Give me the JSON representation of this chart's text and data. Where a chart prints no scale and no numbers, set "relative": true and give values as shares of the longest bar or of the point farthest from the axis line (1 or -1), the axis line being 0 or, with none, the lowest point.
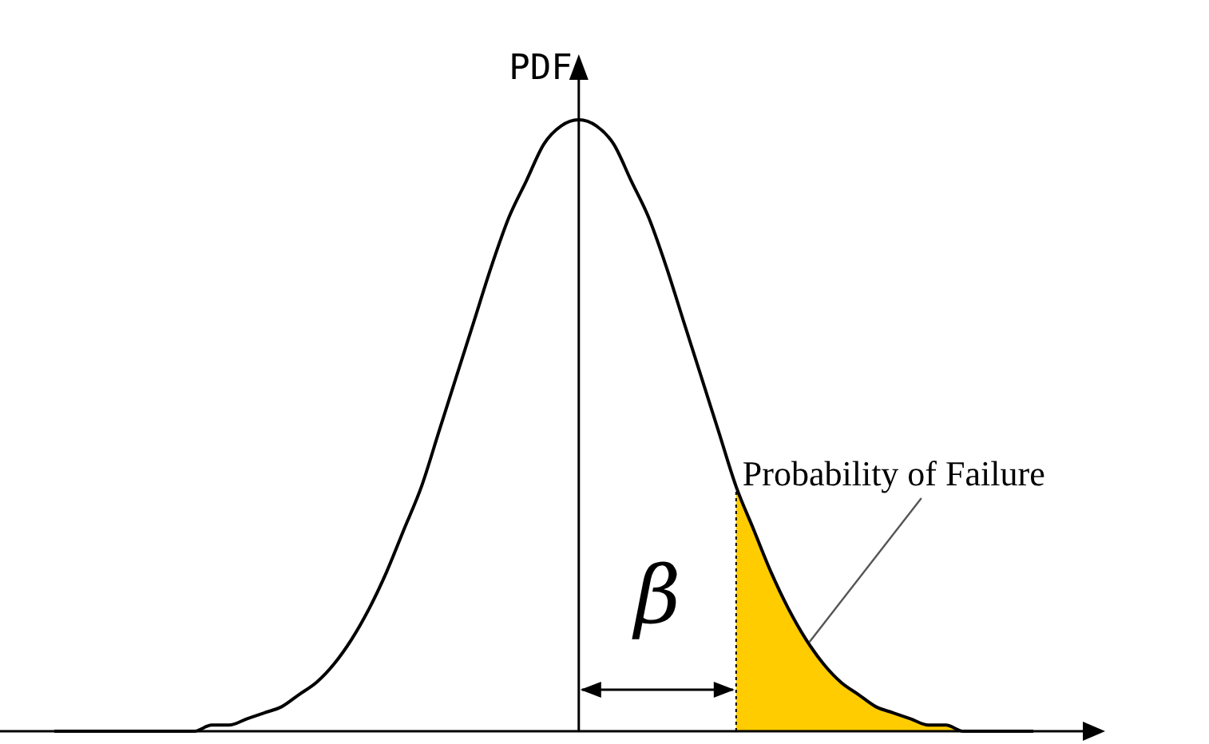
{
  "chart_data": {
    "type": "line",
    "ylabel": "PDF",
    "relative": true,
    "legend": false,
    "marker": "none",
    "categories": [
      null,
      null,
      null,
      null,
      null,
      null,
      null,
      null,
      null,
      null,
      null,
      null,
      null,
      null,
      null,
      null,
      null,
      null,
      null,
      null,
      null,
      null,
      null,
      null,
      null,
      null,
      null,
      null,
      null,
      null,
      null,
      null,
      null,
      null,
      null,
      null,
      null,
      null,
      null,
      null,
      null,
      null,
      null,
      null,
      null,
      null,
      null,
      null,
      null,
      null,
      null,
      null,
      null,
      null,
      null,
      null,
      null
    ],
    "series": [
      {
        "color": "#000000",
        "values": [
          0,
          0,
          0,
          0,
          0,
          0,
          0,
          0,
          0,
          0.01,
          0.01,
          0.02,
          0.03,
          0.04,
          0.06,
          0.08,
          0.11,
          0.15,
          0.2,
          0.26,
          0.33,
          0.4,
          0.49,
          0.58,
          0.67,
          0.76,
          0.84,
          0.9,
          0.96,
          0.99,
          1,
          0.99,
          0.96,
          0.9,
          0.84,
          0.76,
          0.67,
          0.58,
          0.49,
          0.4,
          0.33,
          0.26,
          0.2,
          0.15,
          0.11,
          0.08,
          0.06,
          0.04,
          0.03,
          0.02,
          0.01,
          0.01,
          0,
          0,
          0,
          0,
          0
        ]
      },
      {
        "type": "area",
        "color": "#ffcc00",
        "values": [
          null,
          null,
          null,
          null,
          null,
          null,
          null,
          null,
          null,
          null,
          null,
          null,
          null,
          null,
          null,
          null,
          null,
          null,
          null,
          null,
          null,
          null,
          null,
          null,
          null,
          null,
          null,
          null,
          null,
          null,
          null,
          null,
          null,
          null,
          null,
          null,
          null,
          null,
          null,
          0.4,
          0.33,
          0.26,
          0.2,
          0.15,
          0.11,
          0.08,
          0.06,
          0.04,
          0.03,
          0.02,
          0.01,
          0.01,
          0,
          0,
          0,
          0,
          0
        ]
      }
    ],
    "annotations": [
      "Probability of Failure",
      "β"
    ]
  }
}
